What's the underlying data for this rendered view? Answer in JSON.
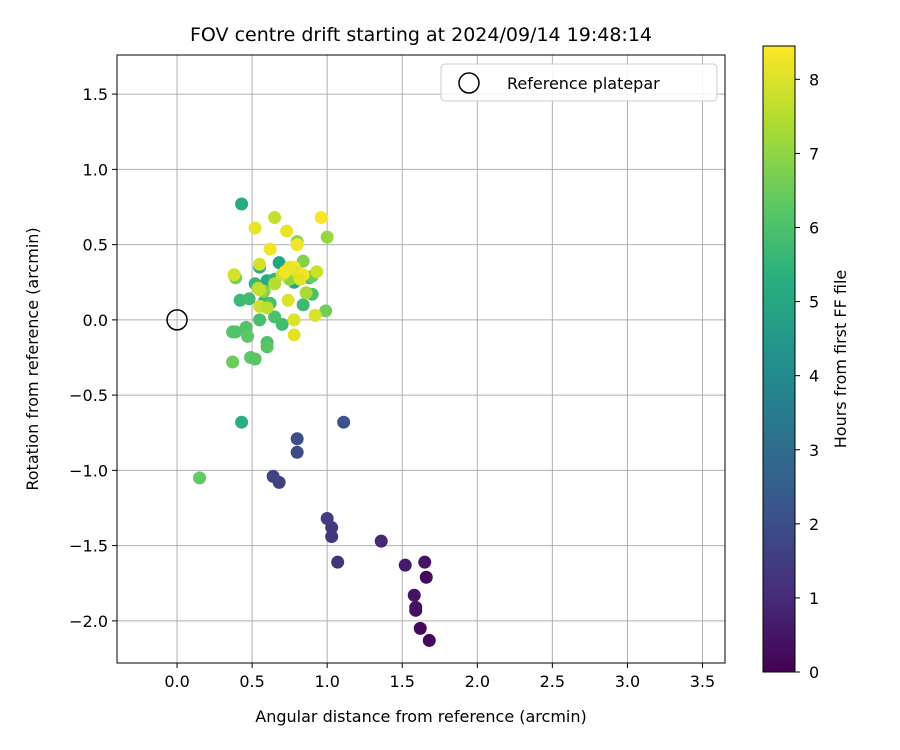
{
  "chart_data": {
    "type": "scatter",
    "title": "FOV centre drift starting at 2024/09/14 19:48:14",
    "xlabel": "Angular distance from reference (arcmin)",
    "ylabel": "Rotation from reference (arcmin)",
    "xlim": [
      -0.4,
      3.65
    ],
    "ylim": [
      -2.28,
      1.76
    ],
    "x_ticks": [
      0.0,
      0.5,
      1.0,
      1.5,
      2.0,
      2.5,
      3.0,
      3.5
    ],
    "x_tick_labels": [
      "0.0",
      "0.5",
      "1.0",
      "1.5",
      "2.0",
      "2.5",
      "3.0",
      "3.5"
    ],
    "y_ticks": [
      1.5,
      1.0,
      0.5,
      0.0,
      -0.5,
      -1.0,
      -1.5,
      -2.0
    ],
    "y_tick_labels": [
      "1.5",
      "1.0",
      "0.5",
      "0.0",
      "−0.5",
      "−1.0",
      "−1.5",
      "−2.0"
    ],
    "grid": true,
    "legend": {
      "position": "top-right",
      "entries": [
        "Reference platepar"
      ]
    },
    "colorbar": {
      "label": "Hours from first FF file",
      "range": [
        0,
        8.45
      ],
      "ticks": [
        0,
        1,
        2,
        3,
        4,
        5,
        6,
        7,
        8
      ],
      "tick_labels": [
        "0",
        "1",
        "2",
        "3",
        "4",
        "5",
        "6",
        "7",
        "8"
      ],
      "colormap": "viridis"
    },
    "reference_point": {
      "name": "Reference platepar",
      "x": 0.0,
      "y": 0.0
    },
    "series": [
      {
        "points": [
          {
            "x": 1.68,
            "y": -2.13,
            "h": 0.15
          },
          {
            "x": 1.62,
            "y": -2.05,
            "h": 0.2
          },
          {
            "x": 1.59,
            "y": -1.93,
            "h": 0.3
          },
          {
            "x": 1.59,
            "y": -1.91,
            "h": 0.35
          },
          {
            "x": 1.58,
            "y": -1.83,
            "h": 0.4
          },
          {
            "x": 1.66,
            "y": -1.71,
            "h": 0.25
          },
          {
            "x": 1.65,
            "y": -1.61,
            "h": 0.5
          },
          {
            "x": 1.52,
            "y": -1.63,
            "h": 0.6
          },
          {
            "x": 1.36,
            "y": -1.47,
            "h": 0.9
          },
          {
            "x": 1.07,
            "y": -1.61,
            "h": 1.2
          },
          {
            "x": 1.03,
            "y": -1.44,
            "h": 1.3
          },
          {
            "x": 1.03,
            "y": -1.38,
            "h": 1.4
          },
          {
            "x": 1.0,
            "y": -1.32,
            "h": 1.5
          },
          {
            "x": 0.68,
            "y": -1.08,
            "h": 1.6
          },
          {
            "x": 0.64,
            "y": -1.04,
            "h": 1.7
          },
          {
            "x": 0.8,
            "y": -0.88,
            "h": 1.9
          },
          {
            "x": 0.8,
            "y": -0.79,
            "h": 2.0
          },
          {
            "x": 1.11,
            "y": -0.68,
            "h": 2.1
          },
          {
            "x": 0.43,
            "y": -0.68,
            "h": 5.3
          },
          {
            "x": 0.15,
            "y": -1.05,
            "h": 6.4
          },
          {
            "x": 0.43,
            "y": 0.77,
            "h": 5.2
          },
          {
            "x": 0.68,
            "y": 0.38,
            "h": 4.9
          },
          {
            "x": 0.78,
            "y": 0.25,
            "h": 5.0
          },
          {
            "x": 0.6,
            "y": 0.26,
            "h": 5.1
          },
          {
            "x": 0.55,
            "y": 0.35,
            "h": 5.3
          },
          {
            "x": 0.65,
            "y": 0.27,
            "h": 5.5
          },
          {
            "x": 0.52,
            "y": 0.24,
            "h": 5.6
          },
          {
            "x": 0.42,
            "y": 0.13,
            "h": 5.7
          },
          {
            "x": 0.48,
            "y": 0.14,
            "h": 5.8
          },
          {
            "x": 0.58,
            "y": 0.12,
            "h": 5.6
          },
          {
            "x": 0.62,
            "y": 0.11,
            "h": 5.9
          },
          {
            "x": 0.84,
            "y": 0.1,
            "h": 5.7
          },
          {
            "x": 0.88,
            "y": 0.28,
            "h": 5.8
          },
          {
            "x": 0.9,
            "y": 0.17,
            "h": 6.0
          },
          {
            "x": 0.55,
            "y": 0.0,
            "h": 5.9
          },
          {
            "x": 0.65,
            "y": 0.02,
            "h": 6.0
          },
          {
            "x": 0.7,
            "y": -0.03,
            "h": 5.8
          },
          {
            "x": 0.46,
            "y": -0.05,
            "h": 6.1
          },
          {
            "x": 0.37,
            "y": -0.08,
            "h": 6.2
          },
          {
            "x": 0.39,
            "y": -0.08,
            "h": 6.1
          },
          {
            "x": 0.47,
            "y": -0.11,
            "h": 6.3
          },
          {
            "x": 0.6,
            "y": -0.15,
            "h": 6.0
          },
          {
            "x": 0.6,
            "y": -0.18,
            "h": 6.2
          },
          {
            "x": 0.49,
            "y": -0.25,
            "h": 6.3
          },
          {
            "x": 0.52,
            "y": -0.26,
            "h": 6.2
          },
          {
            "x": 0.37,
            "y": -0.28,
            "h": 6.5
          },
          {
            "x": 0.39,
            "y": 0.28,
            "h": 6.6
          },
          {
            "x": 0.99,
            "y": 0.06,
            "h": 6.6
          },
          {
            "x": 0.84,
            "y": 0.39,
            "h": 6.8
          },
          {
            "x": 0.9,
            "y": 0.29,
            "h": 6.5
          },
          {
            "x": 0.8,
            "y": 0.52,
            "h": 6.9
          },
          {
            "x": 0.58,
            "y": 0.19,
            "h": 6.9
          },
          {
            "x": 0.75,
            "y": 0.27,
            "h": 7.0
          },
          {
            "x": 1.0,
            "y": 0.55,
            "h": 7.1
          },
          {
            "x": 0.86,
            "y": 0.18,
            "h": 7.3
          },
          {
            "x": 0.65,
            "y": 0.24,
            "h": 7.5
          },
          {
            "x": 0.54,
            "y": 0.21,
            "h": 7.6
          },
          {
            "x": 0.55,
            "y": 0.2,
            "h": 7.7
          },
          {
            "x": 0.7,
            "y": 0.3,
            "h": 7.8
          },
          {
            "x": 0.65,
            "y": 0.68,
            "h": 7.7
          },
          {
            "x": 0.55,
            "y": 0.09,
            "h": 7.8
          },
          {
            "x": 0.6,
            "y": 0.08,
            "h": 7.6
          },
          {
            "x": 0.93,
            "y": 0.32,
            "h": 7.8
          },
          {
            "x": 0.55,
            "y": 0.37,
            "h": 7.9
          },
          {
            "x": 0.38,
            "y": 0.3,
            "h": 7.9
          },
          {
            "x": 0.78,
            "y": 0.0,
            "h": 8.0
          },
          {
            "x": 0.78,
            "y": -0.1,
            "h": 8.1
          },
          {
            "x": 0.74,
            "y": 0.13,
            "h": 8.0
          },
          {
            "x": 0.52,
            "y": 0.61,
            "h": 8.2
          },
          {
            "x": 0.62,
            "y": 0.47,
            "h": 8.3
          },
          {
            "x": 0.73,
            "y": 0.59,
            "h": 8.2
          },
          {
            "x": 0.8,
            "y": 0.5,
            "h": 8.3
          },
          {
            "x": 0.96,
            "y": 0.68,
            "h": 8.4
          },
          {
            "x": 0.78,
            "y": 0.35,
            "h": 8.4
          },
          {
            "x": 0.72,
            "y": 0.32,
            "h": 8.3
          },
          {
            "x": 0.8,
            "y": 0.32,
            "h": 8.1
          },
          {
            "x": 0.84,
            "y": 0.3,
            "h": 8.3
          },
          {
            "x": 0.75,
            "y": 0.35,
            "h": 8.2
          },
          {
            "x": 0.92,
            "y": 0.03,
            "h": 8.0
          },
          {
            "x": 0.82,
            "y": 0.27,
            "h": 8.1
          }
        ]
      }
    ]
  }
}
